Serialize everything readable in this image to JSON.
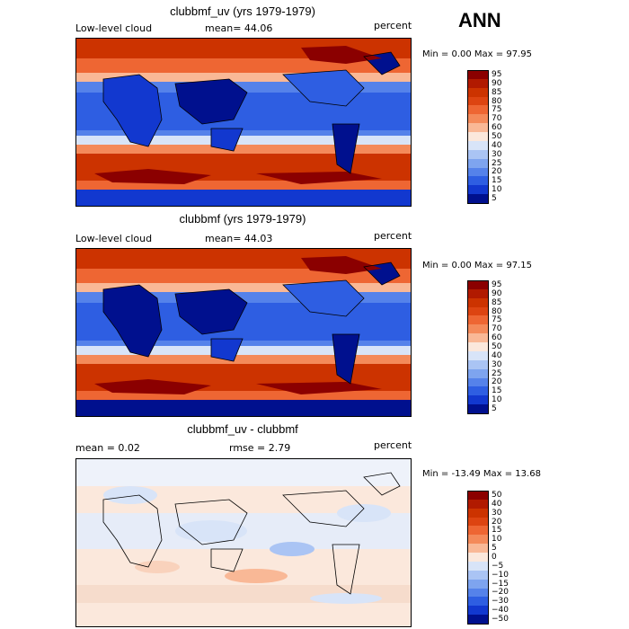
{
  "season": "ANN",
  "panels": [
    {
      "title": "clubbmf_uv (yrs 1979-1979)",
      "left_label": "Low-level cloud",
      "mean_label": "mean=  44.06",
      "units": "percent",
      "minmax": "Min =   0.00 Max =  97.95",
      "levels": [
        "95",
        "90",
        "85",
        "80",
        "75",
        "70",
        "60",
        "50",
        "40",
        "30",
        "25",
        "20",
        "15",
        "10",
        "5"
      ],
      "colors": [
        "#8b0000",
        "#b11a00",
        "#cc3300",
        "#dd4411",
        "#ee6633",
        "#f48a5a",
        "#f9b896",
        "#fbe8dc",
        "#d8e4f8",
        "#aac4f4",
        "#7ea4ef",
        "#5582ea",
        "#2e5ee2",
        "#1238cf",
        "#00108e"
      ]
    },
    {
      "title": "clubbmf (yrs 1979-1979)",
      "left_label": "Low-level cloud",
      "mean_label": "mean=  44.03",
      "units": "percent",
      "minmax": "Min =   0.00 Max =  97.15",
      "levels": [
        "95",
        "90",
        "85",
        "80",
        "75",
        "70",
        "60",
        "50",
        "40",
        "30",
        "25",
        "20",
        "15",
        "10",
        "5"
      ],
      "colors": [
        "#8b0000",
        "#b11a00",
        "#cc3300",
        "#dd4411",
        "#ee6633",
        "#f48a5a",
        "#f9b896",
        "#fbe8dc",
        "#d8e4f8",
        "#aac4f4",
        "#7ea4ef",
        "#5582ea",
        "#2e5ee2",
        "#1238cf",
        "#00108e"
      ]
    },
    {
      "title": "clubbmf_uv - clubbmf",
      "left_label": "mean =   0.02",
      "mean_label": "rmse =   2.79",
      "units": "percent",
      "minmax": "Min = -13.49 Max =  13.68",
      "levels": [
        "50",
        "40",
        "30",
        "20",
        "15",
        "10",
        "5",
        "0",
        "−5",
        "−10",
        "−15",
        "−20",
        "−30",
        "−40",
        "−50"
      ],
      "colors": [
        "#8b0000",
        "#b11a00",
        "#cc3300",
        "#dd4411",
        "#ee6633",
        "#f48a5a",
        "#f9b896",
        "#fbe8dc",
        "#d8e4f8",
        "#aac4f4",
        "#7ea4ef",
        "#5582ea",
        "#2e5ee2",
        "#1238cf",
        "#00108e"
      ]
    }
  ]
}
